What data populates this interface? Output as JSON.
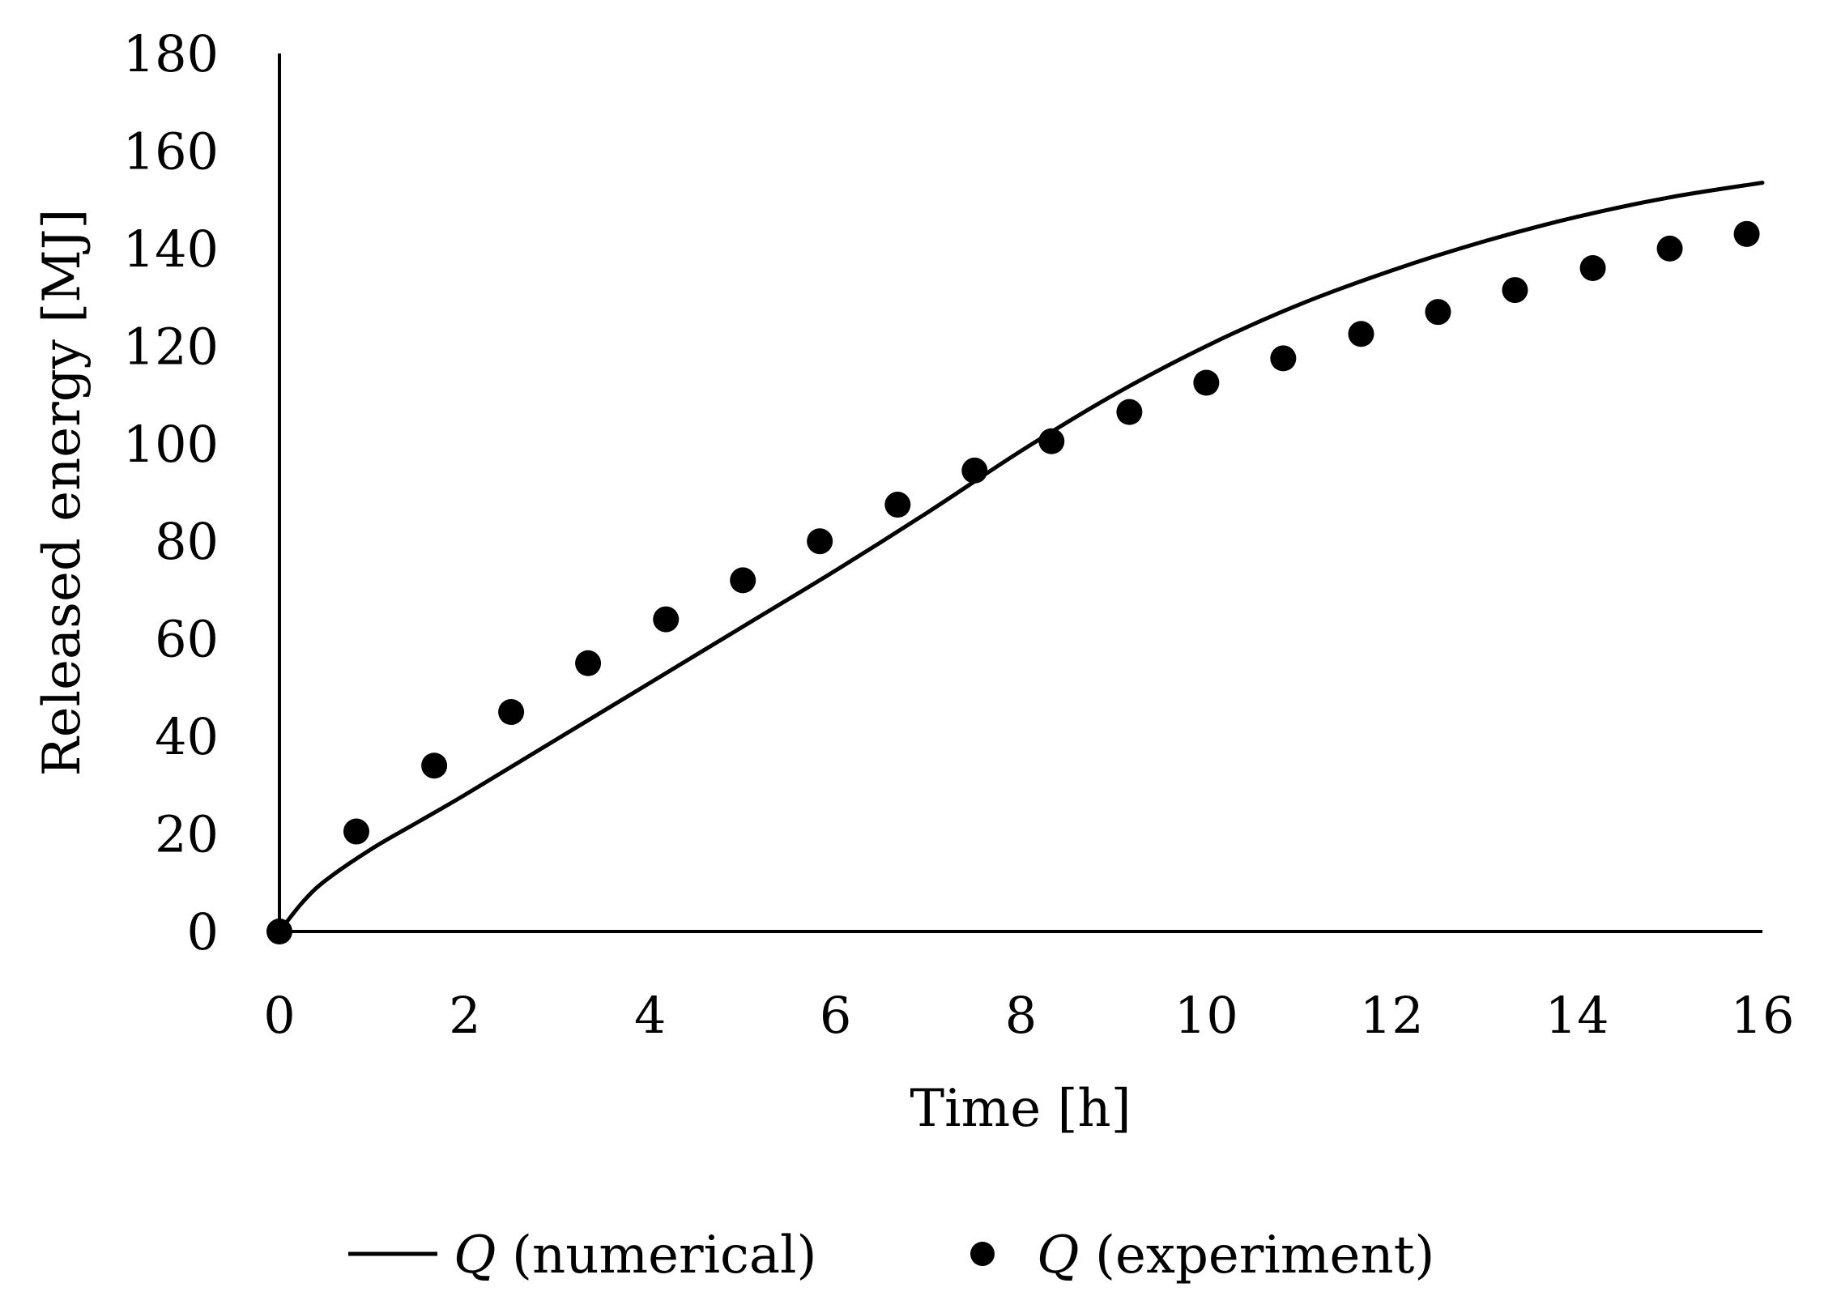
{
  "chart_data": {
    "type": "line",
    "title": "",
    "xlabel": "Time [h]",
    "ylabel": "Released energy [MJ]",
    "xlim": [
      0,
      16
    ],
    "ylim": [
      0,
      180
    ],
    "xticks": [
      "0",
      "2",
      "4",
      "6",
      "8",
      "10",
      "12",
      "14",
      "16"
    ],
    "yticks": [
      "0",
      "20",
      "40",
      "60",
      "80",
      "100",
      "120",
      "140",
      "160",
      "180"
    ],
    "grid": false,
    "legend_position": "bottom",
    "series": [
      {
        "name": "(numerical)",
        "symbol": "Q",
        "style": "line",
        "color": "#000000",
        "x": [
          0,
          0.25,
          0.5,
          1,
          1.5,
          2,
          3,
          4,
          5,
          6,
          7,
          8,
          9,
          10,
          11,
          12,
          13,
          14,
          15,
          16
        ],
        "y": [
          0,
          6,
          10.5,
          17,
          22.5,
          28,
          39.5,
          51,
          62.5,
          74,
          86,
          98.5,
          110,
          120,
          128.5,
          135.5,
          141.5,
          146.5,
          150.5,
          153.5
        ]
      },
      {
        "name": "(experiment)",
        "symbol": "Q",
        "style": "scatter",
        "color": "#000000",
        "x": [
          0,
          0.83,
          1.67,
          2.5,
          3.33,
          4.17,
          5,
          5.83,
          6.67,
          7.5,
          8.33,
          9.17,
          10,
          10.83,
          11.67,
          12.5,
          13.33,
          14.17,
          15,
          15.83
        ],
        "y": [
          0,
          20.5,
          34,
          45,
          55,
          64,
          72,
          80,
          87.5,
          94.5,
          100.5,
          106.5,
          112.5,
          117.5,
          122.5,
          127,
          131.5,
          136,
          140,
          143
        ]
      }
    ]
  }
}
